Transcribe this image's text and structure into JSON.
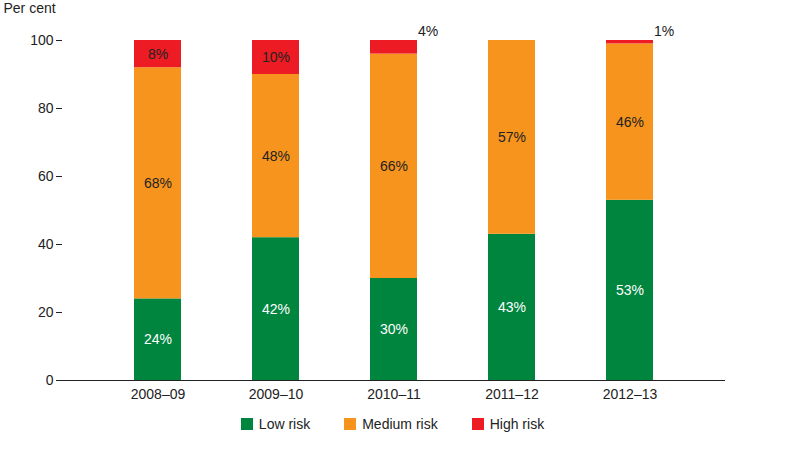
{
  "chart_data": {
    "type": "bar",
    "stacked": true,
    "data_labels": true,
    "legend": "bottom",
    "ylabel": "Per cent",
    "categories": [
      "2008–09",
      "2009–10",
      "2010–11",
      "2011–12",
      "2012–13"
    ],
    "series": [
      {
        "name": "Low risk",
        "color": "#00853f",
        "values": [
          24,
          42,
          30,
          43,
          53
        ],
        "value_labels": [
          "24%",
          "42%",
          "30%",
          "43%",
          "53%"
        ]
      },
      {
        "name": "Medium risk",
        "color": "#f7941d",
        "values": [
          68,
          48,
          66,
          57,
          46
        ],
        "value_labels": [
          "68%",
          "48%",
          "66%",
          "57%",
          "46%"
        ]
      },
      {
        "name": "High risk",
        "color": "#ed1c24",
        "values": [
          8,
          10,
          4,
          0,
          1
        ],
        "value_labels": [
          "8%",
          "10%",
          "4%",
          null,
          "1%"
        ]
      }
    ],
    "ylim": [
      0,
      100
    ],
    "yticks": [
      0,
      20,
      40,
      60,
      80,
      100
    ]
  }
}
